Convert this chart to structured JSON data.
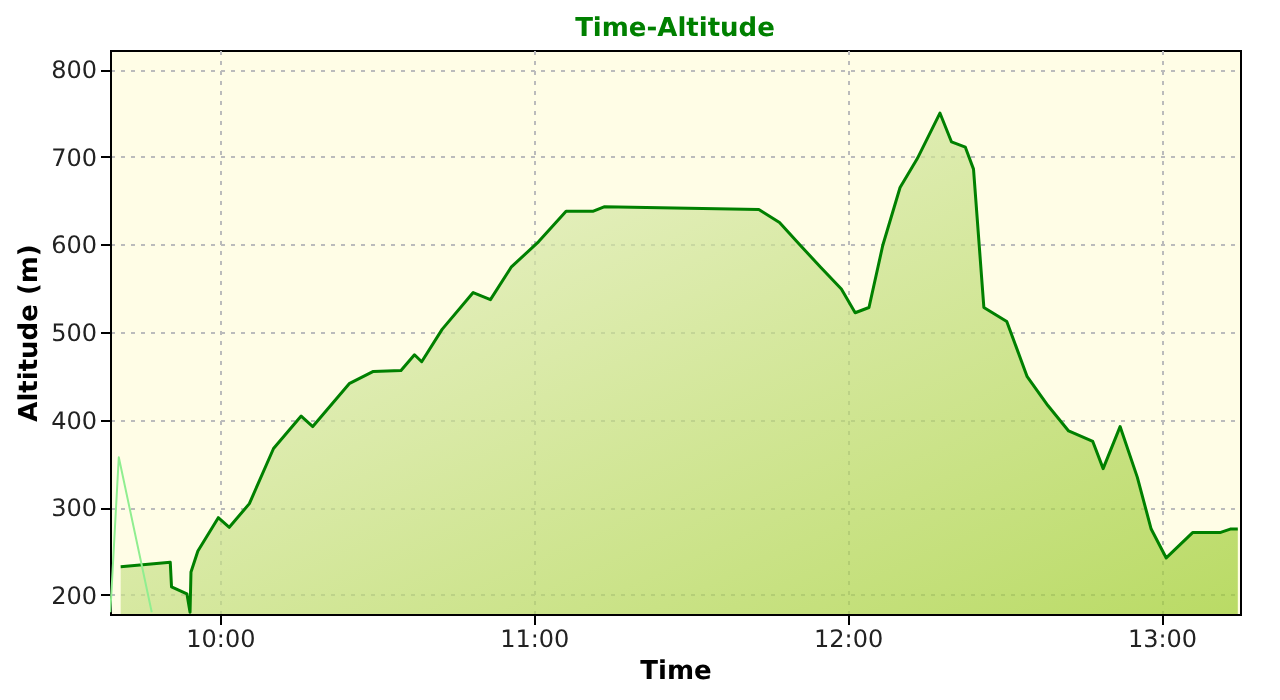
{
  "chart_data": {
    "type": "area",
    "title": "Time-Altitude",
    "xlabel": "Time",
    "ylabel": "Altitude (m)",
    "xlim": [
      9.65,
      13.25
    ],
    "ylim": [
      178,
      822
    ],
    "xticks": [
      {
        "value": 10,
        "label": "10:00"
      },
      {
        "value": 11,
        "label": "11:00"
      },
      {
        "value": 12,
        "label": "12:00"
      },
      {
        "value": 13,
        "label": "13:00"
      }
    ],
    "yticks": [
      200,
      300,
      400,
      500,
      600,
      700,
      800
    ],
    "grid": true,
    "series": [
      {
        "color": "#008000",
        "x": [
          9.684,
          9.842,
          9.846,
          9.895,
          9.905,
          9.908,
          9.93,
          9.995,
          10.03,
          10.094,
          10.171,
          10.259,
          10.296,
          10.412,
          10.489,
          10.577,
          10.62,
          10.643,
          10.708,
          10.807,
          10.862,
          10.928,
          11.015,
          11.103,
          11.19,
          11.224,
          11.717,
          11.783,
          11.849,
          11.914,
          11.98,
          12.024,
          12.068,
          12.112,
          12.167,
          12.222,
          12.294,
          12.331,
          12.375,
          12.401,
          12.434,
          12.507,
          12.572,
          12.638,
          12.704,
          12.781,
          12.814,
          12.868,
          12.923,
          12.967,
          13.015,
          13.099,
          13.186,
          13.219,
          13.243
        ],
        "values": [
          232,
          237,
          209,
          201,
          180,
          226,
          250,
          288,
          277,
          304,
          367,
          404,
          392,
          441,
          455,
          456,
          474,
          466,
          503,
          545,
          537,
          574,
          603,
          638,
          638,
          643,
          640,
          625,
          599,
          574,
          549,
          522,
          528,
          599,
          665,
          698,
          750,
          717,
          711,
          686,
          528,
          512,
          449,
          416,
          387,
          375,
          344,
          392,
          334,
          275,
          242,
          271,
          271,
          275,
          275
        ]
      },
      {
        "type": "line",
        "color": "#90ee90",
        "x": [
          9.651,
          9.678,
          9.783
        ],
        "values": [
          180,
          357,
          180
        ]
      }
    ]
  }
}
